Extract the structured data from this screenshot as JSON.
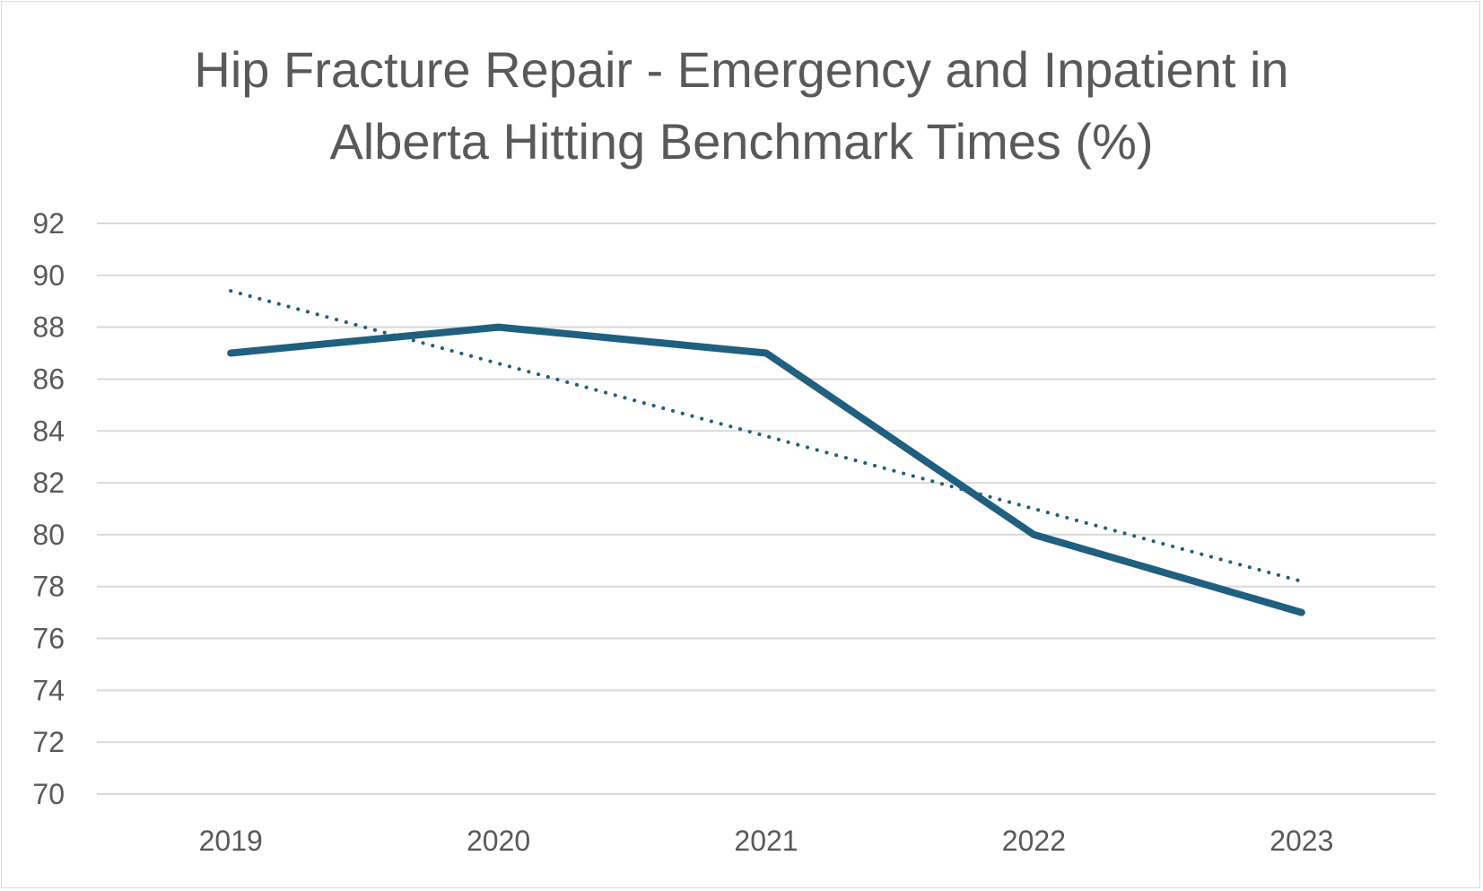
{
  "chart_data": {
    "type": "line",
    "title_lines": [
      "Hip Fracture Repair - Emergency and Inpatient in",
      "Alberta Hitting Benchmark Times (%)"
    ],
    "categories": [
      "2019",
      "2020",
      "2021",
      "2022",
      "2023"
    ],
    "series": [
      {
        "values": [
          87,
          88,
          87,
          80,
          77
        ],
        "color": "#1f5f7f",
        "style": "solid"
      },
      {
        "values": [
          89.4,
          86.6,
          83.8,
          81.0,
          78.2
        ],
        "color": "#1f5f7f",
        "style": "dotted",
        "kind": "linear trendline"
      }
    ],
    "yticks": [
      "92",
      "90",
      "88",
      "86",
      "84",
      "82",
      "80",
      "78",
      "76",
      "74",
      "72",
      "70"
    ],
    "ylim": [
      70,
      92
    ],
    "ystep": 2,
    "grid": true,
    "legend": "none",
    "xlabel": "",
    "ylabel": ""
  }
}
